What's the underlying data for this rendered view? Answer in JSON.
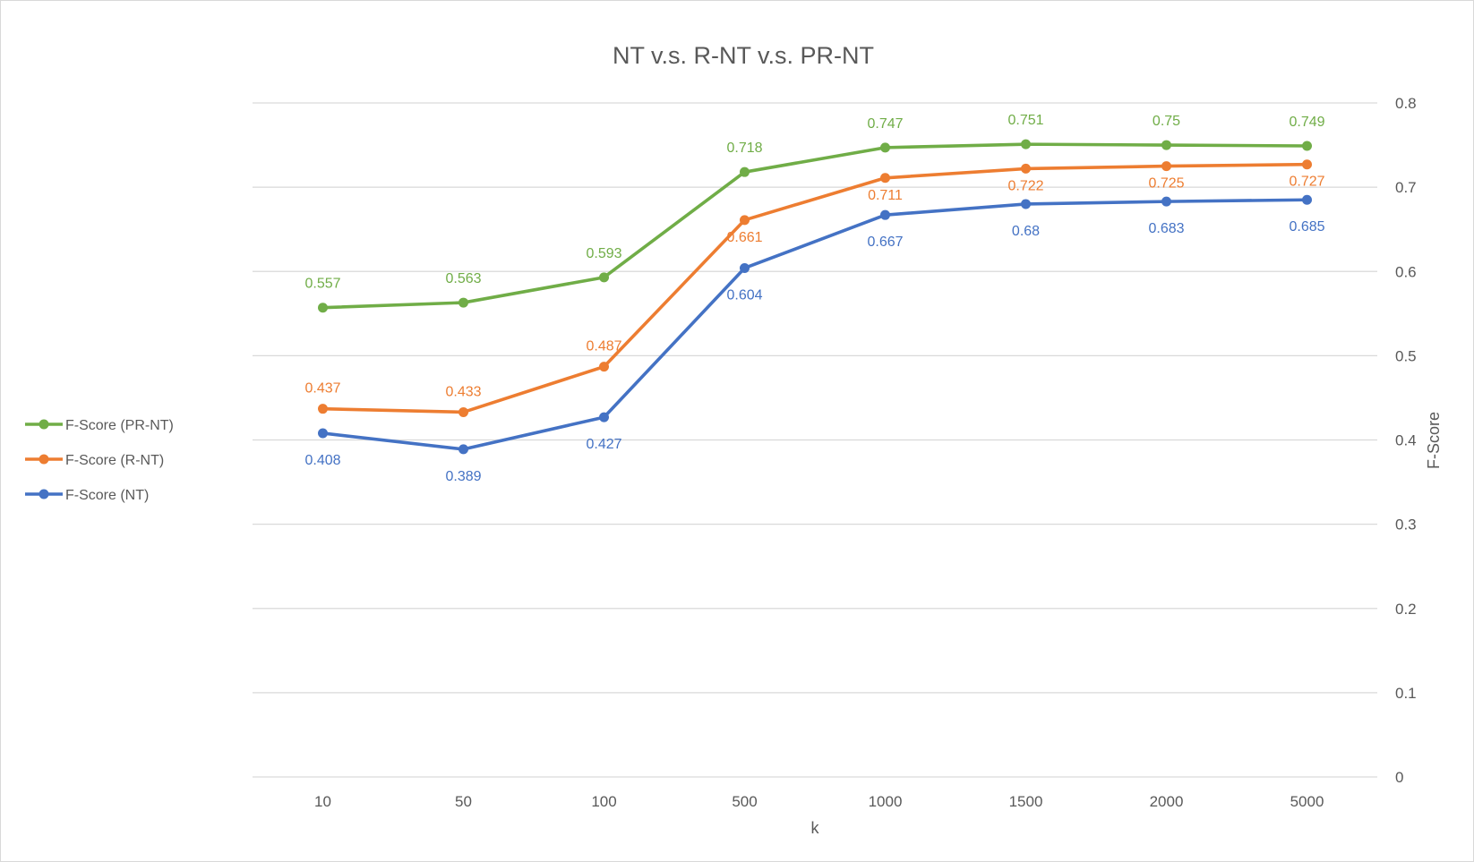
{
  "chart_data": {
    "type": "line",
    "title": "NT v.s. R-NT v.s. PR-NT",
    "xlabel": "k",
    "ylabel": "F-Score",
    "categories": [
      "10",
      "50",
      "100",
      "500",
      "1000",
      "1500",
      "2000",
      "5000"
    ],
    "ylim": [
      0,
      0.8
    ],
    "yticks": [
      "0",
      "0.1",
      "0.2",
      "0.3",
      "0.4",
      "0.5",
      "0.6",
      "0.7",
      "0.8"
    ],
    "y_axis_position": "right",
    "grid": true,
    "legend_position": "left",
    "series": [
      {
        "name": "F-Score (PR-NT)",
        "color": "#70ad47",
        "values": [
          0.557,
          0.563,
          0.593,
          0.718,
          0.747,
          0.751,
          0.75,
          0.749
        ],
        "labels": [
          "0.557",
          "0.563",
          "0.593",
          "0.718",
          "0.747",
          "0.751",
          "0.75",
          "0.749"
        ]
      },
      {
        "name": "F-Score (R-NT)",
        "color": "#ed7d31",
        "values": [
          0.437,
          0.433,
          0.487,
          0.661,
          0.711,
          0.722,
          0.725,
          0.727
        ],
        "labels": [
          "0.437",
          "0.433",
          "0.487",
          "0.661",
          "0.711",
          "0.722",
          "0.725",
          "0.727"
        ]
      },
      {
        "name": "F-Score (NT)",
        "color": "#4472c4",
        "values": [
          0.408,
          0.389,
          0.427,
          0.604,
          0.667,
          0.68,
          0.683,
          0.685
        ],
        "labels": [
          "0.408",
          "0.389",
          "0.427",
          "0.604",
          "0.667",
          "0.68",
          "0.683",
          "0.685"
        ]
      }
    ]
  }
}
